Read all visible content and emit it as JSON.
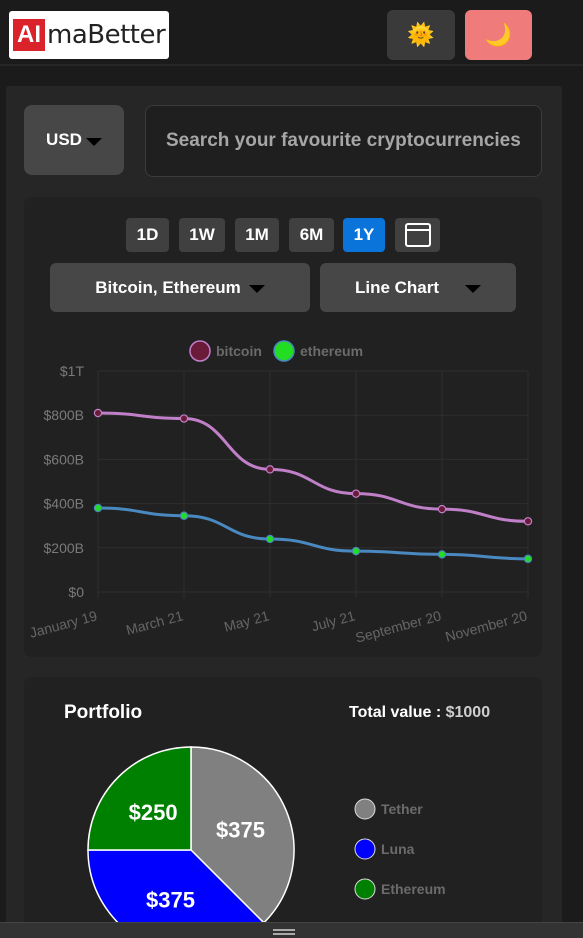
{
  "header": {
    "logo_ai": "AI",
    "logo_rest": "maBetter",
    "light_icon": "🌞",
    "dark_icon": "🌙"
  },
  "currency": {
    "label": "USD"
  },
  "search": {
    "placeholder": "Search your favourite cryptocurrencies"
  },
  "ranges": [
    "1D",
    "1W",
    "1M",
    "6M",
    "1Y"
  ],
  "active_range": "1Y",
  "coin_select": {
    "label": "Bitcoin, Ethereum"
  },
  "chart_type_select": {
    "label": "Line Chart"
  },
  "chart_data": {
    "type": "line",
    "categories": [
      "January 19",
      "March 21",
      "May 21",
      "July 21",
      "September 20",
      "November 20"
    ],
    "x": [
      0,
      1,
      2,
      3,
      4,
      5
    ],
    "x_ticks": [
      "January 19",
      "March 21",
      "May 21",
      "July 21",
      "September 20",
      "November 20"
    ],
    "y_ticks": [
      "$0",
      "$200B",
      "$400B",
      "$600B",
      "$800B",
      "$1T"
    ],
    "ylim": [
      0,
      1000
    ],
    "legend_position": "top",
    "grid": true,
    "series": [
      {
        "name": "bitcoin",
        "color": "#c080c8",
        "marker_fill": "#6a1b3a",
        "values": [
          810,
          785,
          555,
          445,
          375,
          320
        ]
      },
      {
        "name": "ethereum",
        "color": "#4a88c0",
        "marker_fill": "#22dd22",
        "values": [
          380,
          345,
          240,
          185,
          170,
          150
        ]
      }
    ]
  },
  "portfolio": {
    "title": "Portfolio",
    "total_label": "Total value : ",
    "total_value": "$1000",
    "slices": [
      {
        "name": "Tether",
        "value": 375,
        "label": "$375",
        "color": "#808080"
      },
      {
        "name": "Luna",
        "value": 375,
        "label": "$375",
        "color": "#0000ff"
      },
      {
        "name": "Ethereum",
        "value": 250,
        "label": "$250",
        "color": "#008000"
      }
    ]
  }
}
